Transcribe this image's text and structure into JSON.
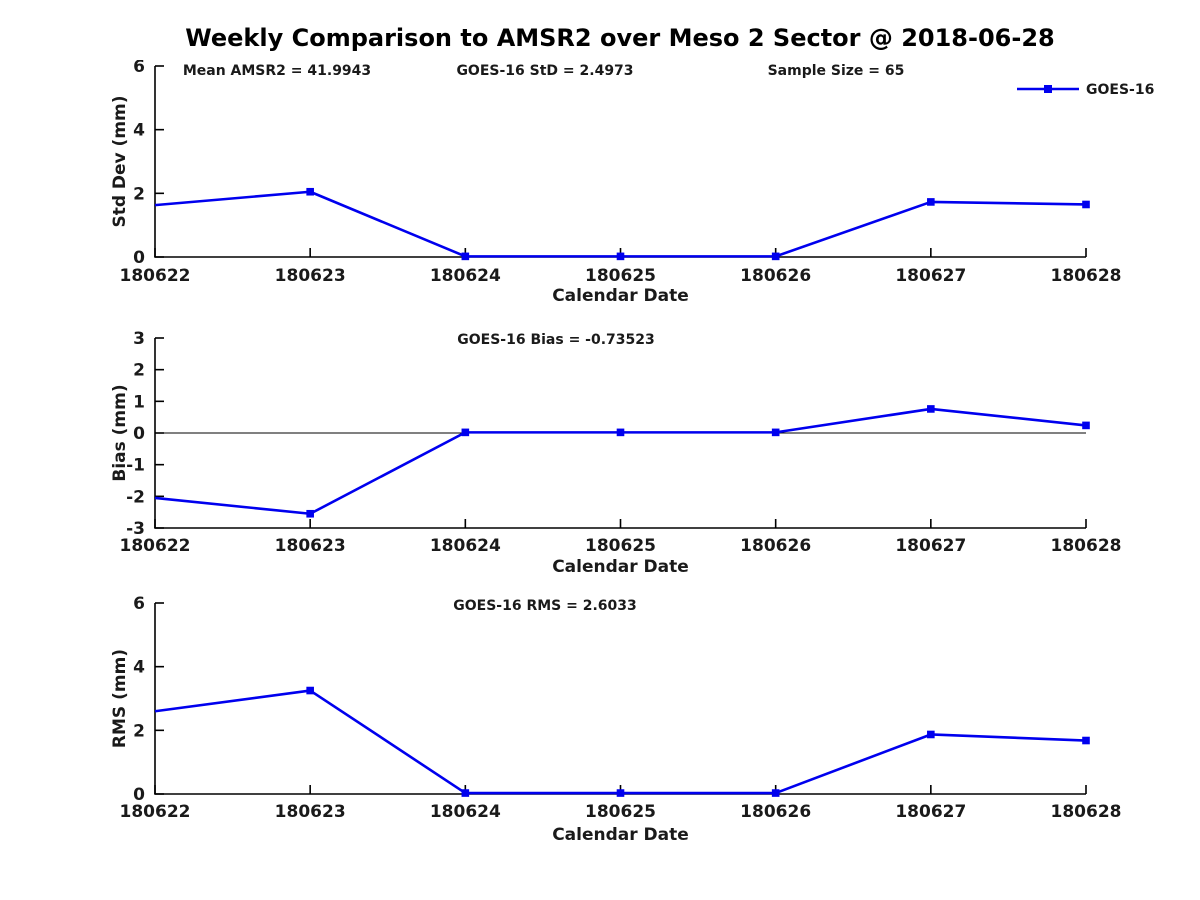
{
  "page": {
    "title": "Weekly Comparison to AMSR2 over Meso 2 Sector @ 2018-06-28"
  },
  "colors": {
    "series_blue": "#0000ee",
    "axis_black": "#000000",
    "text": "#1a1a1a"
  },
  "chart_data": [
    {
      "id": "stddev",
      "type": "line",
      "title": "",
      "xlabel": "Calendar Date",
      "ylabel": "Std Dev (mm)",
      "ylim": [
        0,
        6
      ],
      "yticks": [
        0,
        2,
        4,
        6
      ],
      "categories": [
        "180622",
        "180623",
        "180624",
        "180625",
        "180626",
        "180627",
        "180628"
      ],
      "series": [
        {
          "name": "GOES-16",
          "values": [
            1.63,
            2.05,
            0.02,
            0.02,
            0.02,
            1.73,
            1.65
          ]
        }
      ],
      "annotations": [
        "Mean AMSR2 = 41.9943",
        "GOES-16 StD = 2.4973",
        "Sample Size = 65"
      ],
      "legend": {
        "visible": true,
        "label": "GOES-16",
        "position": "top-right"
      },
      "zero_line": false,
      "grid": false
    },
    {
      "id": "bias",
      "type": "line",
      "title": "",
      "xlabel": "Calendar Date",
      "ylabel": "Bias (mm)",
      "ylim": [
        -3,
        3
      ],
      "yticks": [
        -3,
        -2,
        -1,
        0,
        1,
        2,
        3
      ],
      "categories": [
        "180622",
        "180623",
        "180624",
        "180625",
        "180626",
        "180627",
        "180628"
      ],
      "series": [
        {
          "name": "GOES-16",
          "values": [
            -2.05,
            -2.55,
            0.02,
            0.02,
            0.02,
            0.76,
            0.24
          ]
        }
      ],
      "annotations": [
        "GOES-16 Bias  = -0.73523"
      ],
      "legend": {
        "visible": false,
        "label": "GOES-16"
      },
      "zero_line": true,
      "grid": false
    },
    {
      "id": "rms",
      "type": "line",
      "title": "",
      "xlabel": "Calendar Date",
      "ylabel": "RMS (mm)",
      "ylim": [
        0,
        6
      ],
      "yticks": [
        0,
        2,
        4,
        6
      ],
      "categories": [
        "180622",
        "180623",
        "180624",
        "180625",
        "180626",
        "180627",
        "180628"
      ],
      "series": [
        {
          "name": "GOES-16",
          "values": [
            2.6,
            3.25,
            0.03,
            0.03,
            0.03,
            1.87,
            1.68
          ]
        }
      ],
      "annotations": [
        "GOES-16 RMS = 2.6033"
      ],
      "legend": {
        "visible": false,
        "label": "GOES-16"
      },
      "zero_line": false,
      "grid": false
    }
  ]
}
